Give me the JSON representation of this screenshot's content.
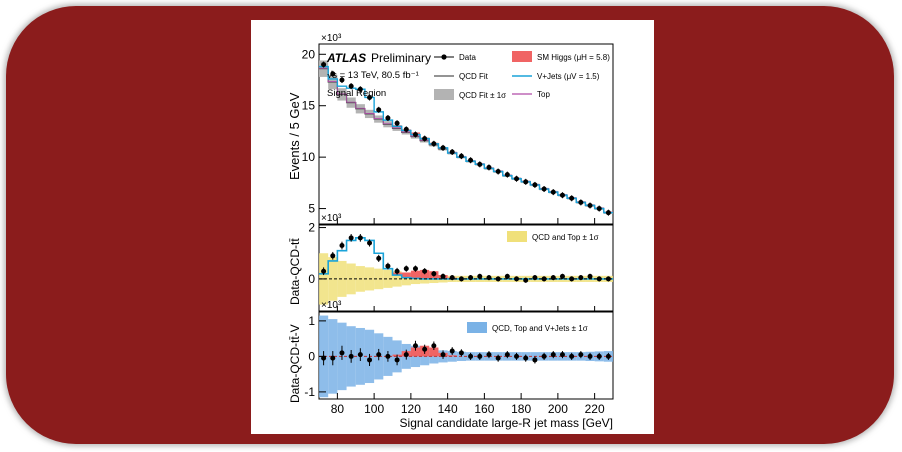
{
  "experiment": {
    "name": "ATLAS",
    "status": "Preliminary"
  },
  "energy_text": "√s = 13 TeV, 80.5 fb⁻¹",
  "region_text": "Signal Region",
  "xlabel": "Signal candidate large-R jet mass [GeV]",
  "colors": {
    "frame": "#8b1c1c",
    "data": "#000000",
    "qcd": "#555555",
    "qcd_band": "#b3b3b3",
    "higgs": "#f06464",
    "vjets": "#1aa3d9",
    "top": "#b04aa8",
    "yellow_band": "#f0e07a",
    "blue_band": "#7ab2e6"
  },
  "chart_data": {
    "type": "line",
    "x_range": [
      70,
      230
    ],
    "x_ticks": [
      80,
      100,
      120,
      140,
      160,
      180,
      200,
      220
    ],
    "panels": [
      {
        "id": "main",
        "ylabel": "Events / 5 GeV",
        "exponent": "×10³",
        "y_range": [
          3.5,
          21
        ],
        "y_ticks": [
          5,
          10,
          15,
          20
        ],
        "legend": [
          "Data",
          "QCD Fit",
          "QCD Fit ± 1σ",
          "SM Higgs (μH = 5.8)",
          "V+Jets (μV = 1.5)",
          "Top"
        ],
        "bins_x": [
          70,
          75,
          80,
          85,
          90,
          95,
          100,
          105,
          110,
          115,
          120,
          125,
          130,
          135,
          140,
          145,
          150,
          155,
          160,
          165,
          170,
          175,
          180,
          185,
          190,
          195,
          200,
          205,
          210,
          215,
          220,
          225,
          230
        ],
        "data_x": [
          72.5,
          77.5,
          82.5,
          87.5,
          92.5,
          97.5,
          102.5,
          107.5,
          112.5,
          117.5,
          122.5,
          127.5,
          132.5,
          137.5,
          142.5,
          147.5,
          152.5,
          157.5,
          162.5,
          167.5,
          172.5,
          177.5,
          182.5,
          187.5,
          192.5,
          197.5,
          202.5,
          207.5,
          212.5,
          217.5,
          222.5,
          227.5
        ],
        "data_y": [
          19.0,
          18.1,
          17.5,
          16.9,
          16.6,
          15.8,
          14.6,
          13.8,
          13.3,
          12.7,
          12.2,
          11.8,
          11.3,
          10.9,
          10.5,
          10.1,
          9.7,
          9.3,
          9.0,
          8.6,
          8.3,
          7.9,
          7.6,
          7.3,
          6.9,
          6.6,
          6.3,
          6.0,
          5.6,
          5.3,
          5.0,
          4.6
        ],
        "qcd_fit": [
          18.6,
          17.3,
          16.1,
          15.3,
          14.7,
          14.2,
          13.7,
          13.2,
          12.8,
          12.4,
          12.0,
          11.6,
          11.2,
          10.8,
          10.4,
          10.0,
          9.6,
          9.3,
          8.9,
          8.6,
          8.2,
          7.9,
          7.6,
          7.3,
          6.9,
          6.6,
          6.3,
          6.0,
          5.6,
          5.3,
          5.0,
          4.6
        ],
        "qcd_err": [
          0.8,
          0.7,
          0.6,
          0.5,
          0.45,
          0.4,
          0.35,
          0.3,
          0.25,
          0.2,
          0.2,
          0.18,
          0.16,
          0.15,
          0.14,
          0.12,
          0.12,
          0.12,
          0.12,
          0.12,
          0.12,
          0.12,
          0.12,
          0.12,
          0.12,
          0.12,
          0.12,
          0.12,
          0.12,
          0.12,
          0.12,
          0.12
        ],
        "vjets_total": [
          18.8,
          17.6,
          16.9,
          16.7,
          16.6,
          15.8,
          14.4,
          13.6,
          13.0,
          12.6,
          12.2,
          11.8,
          11.3,
          10.9,
          10.4,
          10.0,
          9.6,
          9.3,
          8.9,
          8.6,
          8.2,
          7.9,
          7.6,
          7.3,
          6.9,
          6.6,
          6.3,
          6.0,
          5.6,
          5.3,
          5.0,
          4.6
        ],
        "higgs_total": [
          18.8,
          17.6,
          16.9,
          16.7,
          16.6,
          15.8,
          14.4,
          13.6,
          13.1,
          12.7,
          12.4,
          11.9,
          11.4,
          10.9,
          10.4,
          10.0,
          9.6,
          9.3,
          8.9,
          8.6,
          8.2,
          7.9,
          7.6,
          7.3,
          6.9,
          6.6,
          6.3,
          6.0,
          5.6,
          5.3,
          5.0,
          4.6
        ]
      },
      {
        "id": "ratio1",
        "ylabel": "Data-QCD-tt̄",
        "exponent": "×10³",
        "y_range": [
          -1.25,
          2.1
        ],
        "y_ticks": [
          0,
          2
        ],
        "legend": [
          "QCD and Top ± 1σ"
        ],
        "data_y": [
          0.3,
          0.9,
          1.3,
          1.6,
          1.6,
          1.4,
          0.8,
          0.5,
          0.3,
          0.4,
          0.4,
          0.3,
          0.2,
          0.1,
          0.05,
          0.0,
          0.05,
          0.1,
          0.05,
          0.0,
          0.1,
          0.0,
          -0.05,
          0.05,
          0.0,
          0.05,
          0.1,
          0.0,
          0.05,
          0.1,
          0.0,
          0.0
        ],
        "err": [
          0.15,
          0.15,
          0.15,
          0.15,
          0.15,
          0.14,
          0.14,
          0.13,
          0.13,
          0.12,
          0.12,
          0.12,
          0.11,
          0.11,
          0.1,
          0.1,
          0.1,
          0.1,
          0.1,
          0.1,
          0.1,
          0.1,
          0.1,
          0.1,
          0.1,
          0.1,
          0.1,
          0.1,
          0.1,
          0.1,
          0.1,
          0.1
        ],
        "vjets_step": [
          0.2,
          0.7,
          1.1,
          1.5,
          1.6,
          1.5,
          1.0,
          0.4,
          0.15,
          0.05,
          0.02,
          0.0,
          0,
          0,
          0,
          0,
          0,
          0,
          0,
          0,
          0,
          0,
          0,
          0,
          0,
          0,
          0,
          0,
          0,
          0,
          0,
          0
        ],
        "higgs_step": [
          0,
          0,
          0,
          0,
          0,
          0,
          0,
          0,
          0.1,
          0.2,
          0.3,
          0.35,
          0.3,
          0.15,
          0.05,
          0,
          0,
          0,
          0,
          0,
          0,
          0,
          0,
          0,
          0,
          0,
          0,
          0,
          0,
          0,
          0,
          0
        ],
        "band": [
          1.0,
          0.85,
          0.7,
          0.6,
          0.5,
          0.45,
          0.4,
          0.35,
          0.3,
          0.25,
          0.2,
          0.18,
          0.16,
          0.14,
          0.12,
          0.12,
          0.12,
          0.12,
          0.12,
          0.12,
          0.12,
          0.12,
          0.12,
          0.12,
          0.12,
          0.12,
          0.12,
          0.12,
          0.12,
          0.12,
          0.12,
          0.12
        ]
      },
      {
        "id": "ratio2",
        "ylabel": "Data-QCD-tt̄-V",
        "exponent": "×10³",
        "y_range": [
          -1.2,
          1.25
        ],
        "y_ticks": [
          -1,
          0,
          1
        ],
        "legend": [
          "QCD, Top and V+Jets ± 1σ"
        ],
        "data_y": [
          -0.05,
          -0.05,
          0.1,
          0.0,
          0.05,
          -0.1,
          0.05,
          0.0,
          -0.1,
          0.05,
          0.3,
          0.2,
          0.3,
          0.05,
          0.15,
          0.1,
          0.0,
          0.0,
          0.05,
          -0.05,
          0.05,
          0.0,
          -0.05,
          -0.1,
          0.0,
          0.05,
          0.05,
          0.0,
          0.05,
          0.0,
          0.0,
          0.0
        ],
        "err": [
          0.2,
          0.2,
          0.2,
          0.18,
          0.18,
          0.17,
          0.16,
          0.15,
          0.15,
          0.14,
          0.14,
          0.13,
          0.12,
          0.12,
          0.11,
          0.1,
          0.1,
          0.1,
          0.1,
          0.1,
          0.1,
          0.1,
          0.1,
          0.1,
          0.1,
          0.1,
          0.1,
          0.1,
          0.1,
          0.1,
          0.1,
          0.1
        ],
        "higgs_step": [
          0,
          0,
          0,
          0,
          0,
          0,
          0,
          0,
          0.05,
          0.15,
          0.25,
          0.3,
          0.25,
          0.1,
          0.03,
          0,
          0,
          0,
          0,
          0,
          0,
          0,
          0,
          0,
          0,
          0,
          0,
          0,
          0,
          0,
          0,
          0
        ],
        "band": [
          1.15,
          1.05,
          0.95,
          0.85,
          0.8,
          0.75,
          0.65,
          0.55,
          0.45,
          0.35,
          0.3,
          0.25,
          0.2,
          0.17,
          0.15,
          0.13,
          0.12,
          0.12,
          0.12,
          0.12,
          0.12,
          0.12,
          0.12,
          0.12,
          0.12,
          0.12,
          0.12,
          0.12,
          0.12,
          0.13,
          0.14,
          0.15
        ]
      }
    ]
  }
}
